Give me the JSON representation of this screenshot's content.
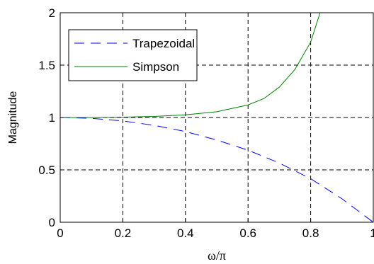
{
  "chart_data": {
    "type": "line",
    "title": "",
    "xlabel": "ω/π",
    "ylabel": "Magnitude",
    "xlim": [
      0,
      1
    ],
    "ylim": [
      0,
      2
    ],
    "grid": true,
    "legend_position": "top-left",
    "x_ticks": [
      "0",
      "0.2",
      "0.4",
      "0.6",
      "0.8",
      "1"
    ],
    "y_ticks": [
      "0",
      "0.5",
      "1",
      "1.5",
      "2"
    ],
    "series": [
      {
        "name": "Trapezoidal",
        "color": "#0000ff",
        "style": "dashed",
        "x": [
          0,
          0.1,
          0.2,
          0.3,
          0.4,
          0.5,
          0.6,
          0.7,
          0.8,
          0.9,
          1.0
        ],
        "y": [
          1.0,
          0.992,
          0.967,
          0.925,
          0.866,
          0.785,
          0.688,
          0.565,
          0.416,
          0.224,
          0.0
        ]
      },
      {
        "name": "Simpson",
        "color": "#008000",
        "style": "solid",
        "x": [
          0,
          0.1,
          0.2,
          0.3,
          0.4,
          0.5,
          0.6,
          0.65,
          0.7,
          0.75,
          0.8,
          0.83
        ],
        "y": [
          1.0,
          1.0,
          1.003,
          1.01,
          1.025,
          1.055,
          1.12,
          1.18,
          1.29,
          1.46,
          1.72,
          2.0
        ]
      }
    ]
  }
}
